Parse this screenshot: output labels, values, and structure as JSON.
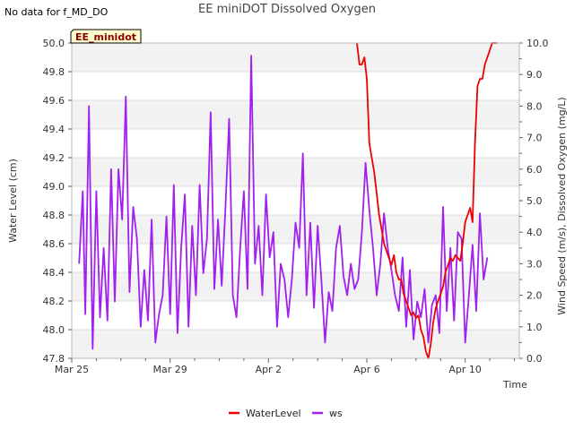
{
  "note": "No data for f_MD_DO",
  "chart_data": {
    "type": "line",
    "title": "EE miniDOT Dissolved Oxygen",
    "xlabel": "Time",
    "ylabel": "Water Level (cm)",
    "ylabel_right": "Wind Speed (m/s), Dissolved Oxygen (mg/L)",
    "station_label": "EE_minidot",
    "x_ticks": [
      {
        "day": 0,
        "label": "Mar 25"
      },
      {
        "day": 4,
        "label": "Mar 29"
      },
      {
        "day": 8,
        "label": "Apr 2"
      },
      {
        "day": 12,
        "label": "Apr 6"
      },
      {
        "day": 16,
        "label": "Apr 10"
      }
    ],
    "xlim": [
      0,
      18.2
    ],
    "ylim": [
      47.8,
      50.0
    ],
    "y2lim": [
      0.0,
      10.0
    ],
    "y_ticks": [
      "47.8",
      "48.0",
      "48.2",
      "48.4",
      "48.6",
      "48.8",
      "49.0",
      "49.2",
      "49.4",
      "49.6",
      "49.8",
      "50.0"
    ],
    "y2_ticks": [
      "0.0",
      "1.0",
      "2.0",
      "3.0",
      "4.0",
      "5.0",
      "6.0",
      "7.0",
      "8.0",
      "9.0",
      "10.0"
    ],
    "legend": [
      {
        "name": "WaterLevel",
        "color": "#ee0000"
      },
      {
        "name": "ws",
        "color": "#a020f0"
      }
    ],
    "series": [
      {
        "name": "WaterLevel",
        "axis": "left",
        "color": "#ee0000",
        "x": [
          11.6,
          11.7,
          11.8,
          11.9,
          12.0,
          12.1,
          12.2,
          12.3,
          12.4,
          12.5,
          12.6,
          12.7,
          12.8,
          12.9,
          13.0,
          13.1,
          13.2,
          13.3,
          13.4,
          13.5,
          13.6,
          13.7,
          13.8,
          13.9,
          14.0,
          14.1,
          14.2,
          14.3,
          14.4,
          14.5,
          14.6,
          14.7,
          14.8,
          14.9,
          15.0,
          15.1,
          15.2,
          15.3,
          15.4,
          15.5,
          15.6,
          15.7,
          15.8,
          15.9,
          16.0,
          16.1,
          16.2,
          16.3,
          16.4,
          16.5,
          16.6,
          16.7,
          16.8,
          16.9,
          17.0,
          17.1,
          17.2,
          17.3
        ],
        "values": [
          50.0,
          49.85,
          49.85,
          49.9,
          49.75,
          49.3,
          49.2,
          49.1,
          48.95,
          48.8,
          48.7,
          48.6,
          48.55,
          48.5,
          48.45,
          48.52,
          48.4,
          48.35,
          48.35,
          48.25,
          48.2,
          48.15,
          48.1,
          48.12,
          48.08,
          48.1,
          48.0,
          47.95,
          47.85,
          47.8,
          47.9,
          48.05,
          48.15,
          48.2,
          48.25,
          48.3,
          48.4,
          48.45,
          48.5,
          48.48,
          48.52,
          48.5,
          48.48,
          48.6,
          48.75,
          48.8,
          48.85,
          48.75,
          49.3,
          49.7,
          49.75,
          49.75,
          49.85,
          49.9,
          49.95,
          50.0,
          50.0,
          50.0
        ]
      },
      {
        "name": "ws",
        "axis": "right",
        "color": "#a020f0",
        "x": [
          0.3,
          0.45,
          0.55,
          0.7,
          0.85,
          1.0,
          1.15,
          1.3,
          1.45,
          1.6,
          1.75,
          1.9,
          2.05,
          2.2,
          2.35,
          2.5,
          2.65,
          2.8,
          2.95,
          3.1,
          3.25,
          3.4,
          3.55,
          3.7,
          3.85,
          4.0,
          4.15,
          4.3,
          4.45,
          4.6,
          4.75,
          4.9,
          5.05,
          5.2,
          5.35,
          5.5,
          5.65,
          5.8,
          5.95,
          6.1,
          6.25,
          6.4,
          6.55,
          6.7,
          6.85,
          7.0,
          7.15,
          7.3,
          7.45,
          7.6,
          7.75,
          7.9,
          8.05,
          8.2,
          8.35,
          8.5,
          8.65,
          8.8,
          8.95,
          9.1,
          9.25,
          9.4,
          9.55,
          9.7,
          9.85,
          10.0,
          10.15,
          10.3,
          10.45,
          10.6,
          10.75,
          10.9,
          11.05,
          11.2,
          11.35,
          11.5,
          11.65,
          11.8,
          11.95,
          12.1,
          12.25,
          12.4,
          12.55,
          12.7,
          12.85,
          13.0,
          13.15,
          13.3,
          13.45,
          13.6,
          13.75,
          13.9,
          14.05,
          14.2,
          14.35,
          14.5,
          14.65,
          14.8,
          14.95,
          15.1,
          15.25,
          15.4,
          15.55,
          15.7,
          15.85,
          16.0,
          16.15,
          16.3,
          16.45,
          16.6,
          16.75,
          16.9
        ],
        "values": [
          3.0,
          5.3,
          1.4,
          8.0,
          0.3,
          5.3,
          1.3,
          3.5,
          1.2,
          6.0,
          1.8,
          6.0,
          4.4,
          8.3,
          2.1,
          4.8,
          3.8,
          1.0,
          2.8,
          1.2,
          4.4,
          0.5,
          1.4,
          2.0,
          4.5,
          1.4,
          5.5,
          0.8,
          3.5,
          5.2,
          1.0,
          4.2,
          2.0,
          5.5,
          2.7,
          3.8,
          7.8,
          2.2,
          4.4,
          2.3,
          4.8,
          7.6,
          2.0,
          1.3,
          3.5,
          5.3,
          2.2,
          9.6,
          3.0,
          4.2,
          2.0,
          5.2,
          3.2,
          4.0,
          1.0,
          3.0,
          2.5,
          1.3,
          2.5,
          4.3,
          3.5,
          6.5,
          2.0,
          4.3,
          1.6,
          4.2,
          2.5,
          0.5,
          2.1,
          1.5,
          3.5,
          4.2,
          2.6,
          2.0,
          3.0,
          2.2,
          2.5,
          4.0,
          6.2,
          4.7,
          3.5,
          2.0,
          3.0,
          4.6,
          3.5,
          2.8,
          2.0,
          1.5,
          3.2,
          1.0,
          2.8,
          0.6,
          1.8,
          1.3,
          2.2,
          0.5,
          1.7,
          2.0,
          0.8,
          4.8,
          1.5,
          3.5,
          1.2,
          4.0,
          3.8,
          0.5,
          2.0,
          3.6,
          1.5,
          4.6,
          2.5,
          3.2
        ]
      }
    ]
  }
}
